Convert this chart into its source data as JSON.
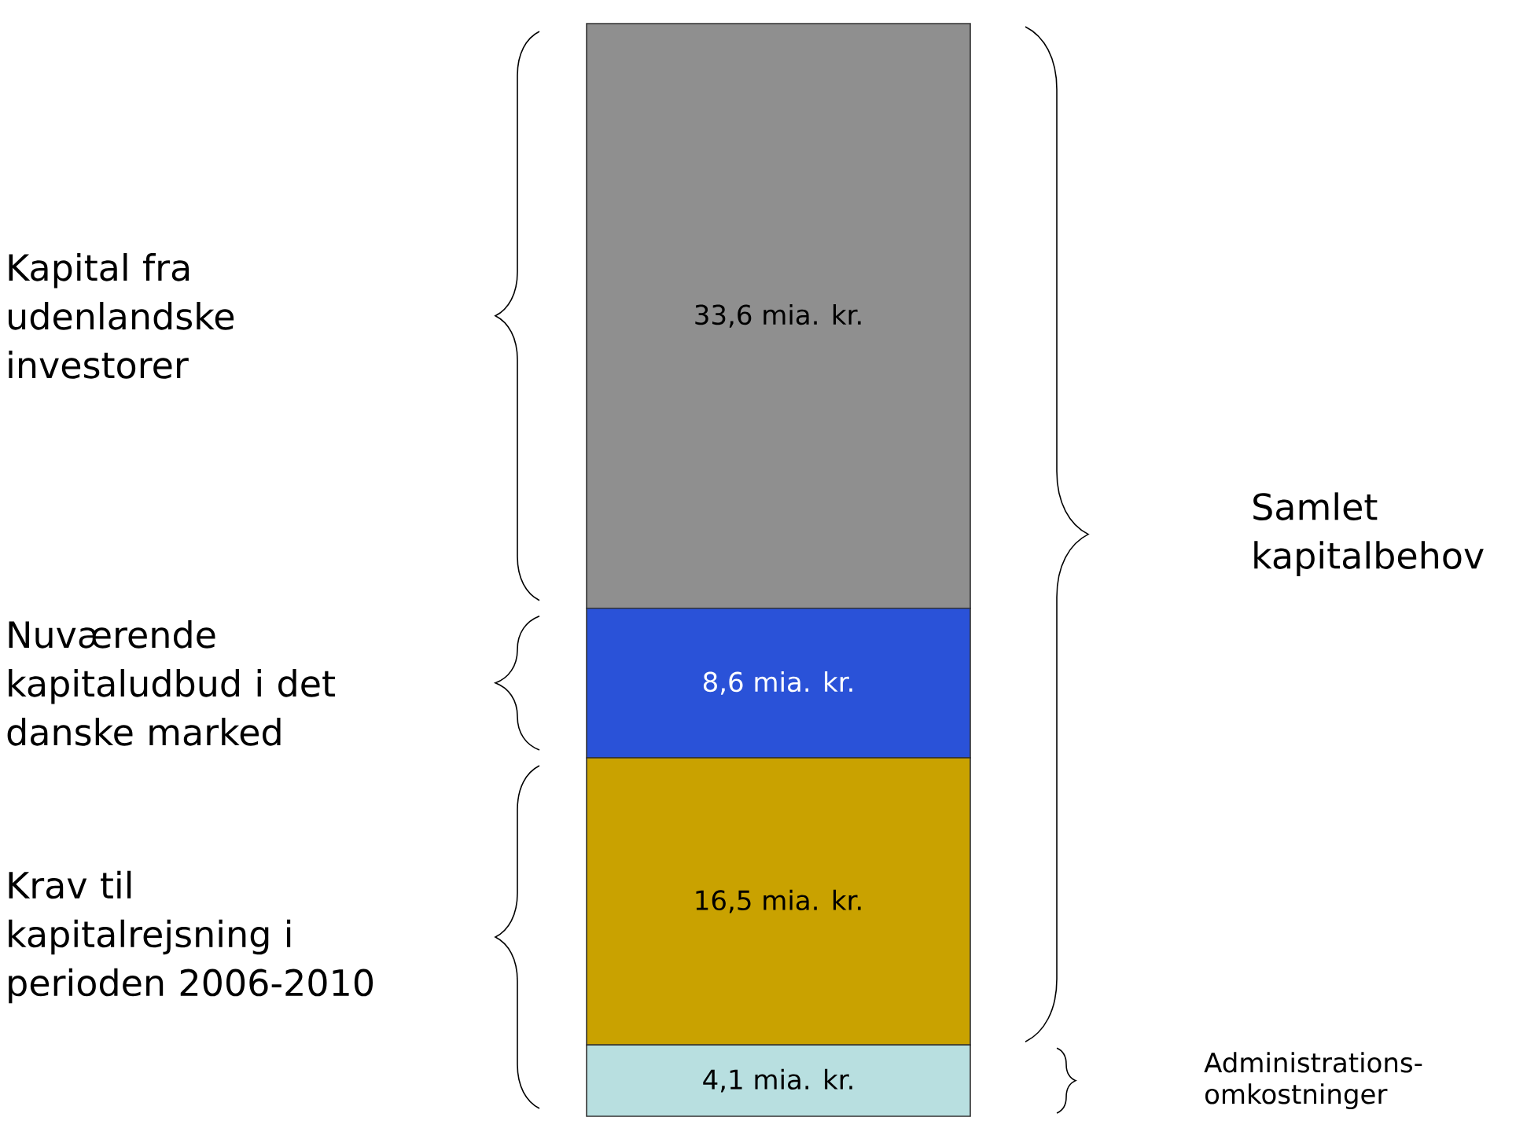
{
  "chart_data": {
    "type": "bar",
    "stacked": true,
    "categories": [
      null
    ],
    "series": [
      {
        "color": "#b8dfe0",
        "values": [
          4.1
        ],
        "value_labels": [
          "4,1 mia. kr."
        ]
      },
      {
        "color": "#c9a200",
        "values": [
          16.5
        ],
        "value_labels": [
          "16,5 mia. kr."
        ]
      },
      {
        "color": "#2a52d8",
        "values": [
          8.6
        ],
        "value_labels": [
          "8,6 mia. kr."
        ]
      },
      {
        "color": "#8f8f8f",
        "values": [
          33.6
        ],
        "value_labels": [
          "33,6 mia. kr."
        ]
      }
    ],
    "annotations": [
      "Kapital fra udenlandske investorer",
      "Nuværende kapitaludbud i det danske marked",
      "Samlet kapitalbehov",
      "Krav til kapitalrejsning i perioden 2006-2010",
      "Administrations-omkostninger"
    ]
  }
}
